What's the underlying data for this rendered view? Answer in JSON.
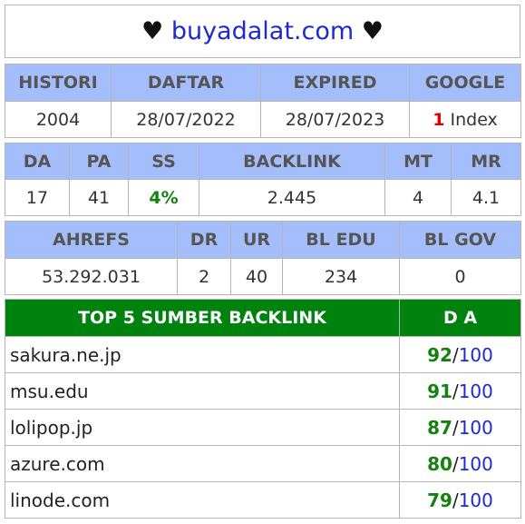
{
  "title": {
    "prefix": "♥",
    "domain": "buyadalat.com",
    "suffix": "♥"
  },
  "history_table": {
    "headers": [
      "HISTORI",
      "DAFTAR",
      "EXPIRED",
      "GOOGLE"
    ],
    "values": {
      "histori": "2004",
      "daftar": "28/07/2022",
      "expired": "28/07/2023",
      "google_count": "1",
      "google_label": "Index"
    }
  },
  "metrics_table": {
    "headers": [
      "DA",
      "PA",
      "SS",
      "BACKLINK",
      "MT",
      "MR"
    ],
    "values": {
      "da": "17",
      "pa": "41",
      "ss": "4%",
      "backlink": "2.445",
      "mt": "4",
      "mr": "4.1"
    }
  },
  "ahrefs_table": {
    "headers": [
      "AHREFS",
      "DR",
      "UR",
      "BL EDU",
      "BL GOV"
    ],
    "values": {
      "ahrefs": "53.292.031",
      "dr": "2",
      "ur": "40",
      "bl_edu": "234",
      "bl_gov": "0"
    }
  },
  "top_backlinks": {
    "header_source": "TOP 5 SUMBER BACKLINK",
    "header_da": "D A",
    "separator": "/",
    "max": "100",
    "rows": [
      {
        "site": "sakura.ne.jp",
        "score": "92"
      },
      {
        "site": "msu.edu",
        "score": "91"
      },
      {
        "site": "lolipop.jp",
        "score": "87"
      },
      {
        "site": "azure.com",
        "score": "80"
      },
      {
        "site": "linode.com",
        "score": "79"
      }
    ]
  },
  "colors": {
    "header_bg": "#a4bdfb",
    "top_header_bg": "#00820f",
    "domain": "#1d2ad0",
    "score_green": "#14820f",
    "google_red": "#e00000"
  }
}
